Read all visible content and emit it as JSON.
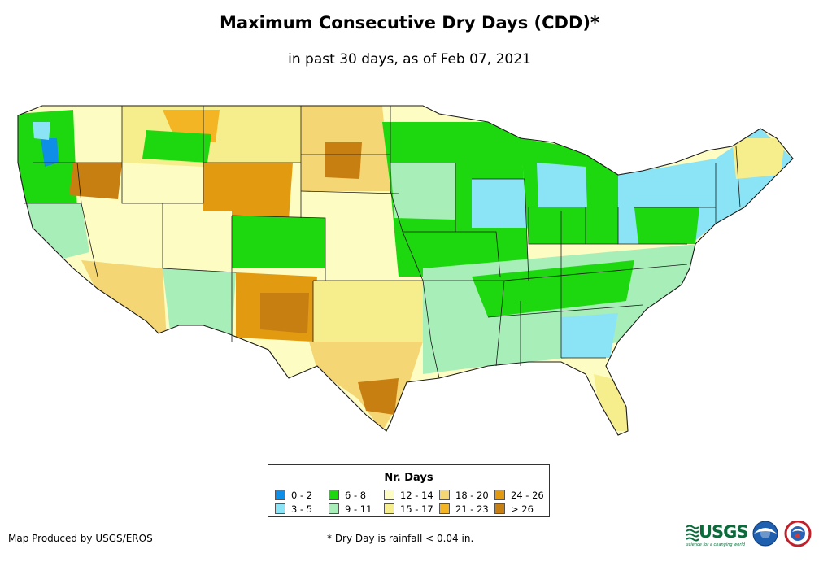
{
  "title": "Maximum Consecutive Dry Days (CDD)*",
  "subtitle": "in past 30 days, as of Feb 07, 2021",
  "legend": {
    "title": "Nr. Days",
    "items": [
      {
        "label": "0 - 2",
        "color": "#0f8ee8"
      },
      {
        "label": "3 - 5",
        "color": "#8be4f5"
      },
      {
        "label": "6 - 8",
        "color": "#1ed80f"
      },
      {
        "label": "9 - 11",
        "color": "#a8eeb8"
      },
      {
        "label": "12 - 14",
        "color": "#fdfcc2"
      },
      {
        "label": "15 - 17",
        "color": "#f6ee8c"
      },
      {
        "label": "18 - 20",
        "color": "#f4d674"
      },
      {
        "label": "21 - 23",
        "color": "#f3b523"
      },
      {
        "label": "24 - 26",
        "color": "#e29a10"
      },
      {
        "label": "> 26",
        "color": "#c77f12"
      }
    ]
  },
  "credit": "Map Produced by USGS/EROS",
  "footnote": "* Dry Day is rainfall < 0.04 in.",
  "logos": {
    "usgs": "USGS",
    "usgs_tagline": "science for a changing world"
  },
  "colors": {
    "state_border": "#1a1a1a",
    "background": "#ffffff"
  }
}
